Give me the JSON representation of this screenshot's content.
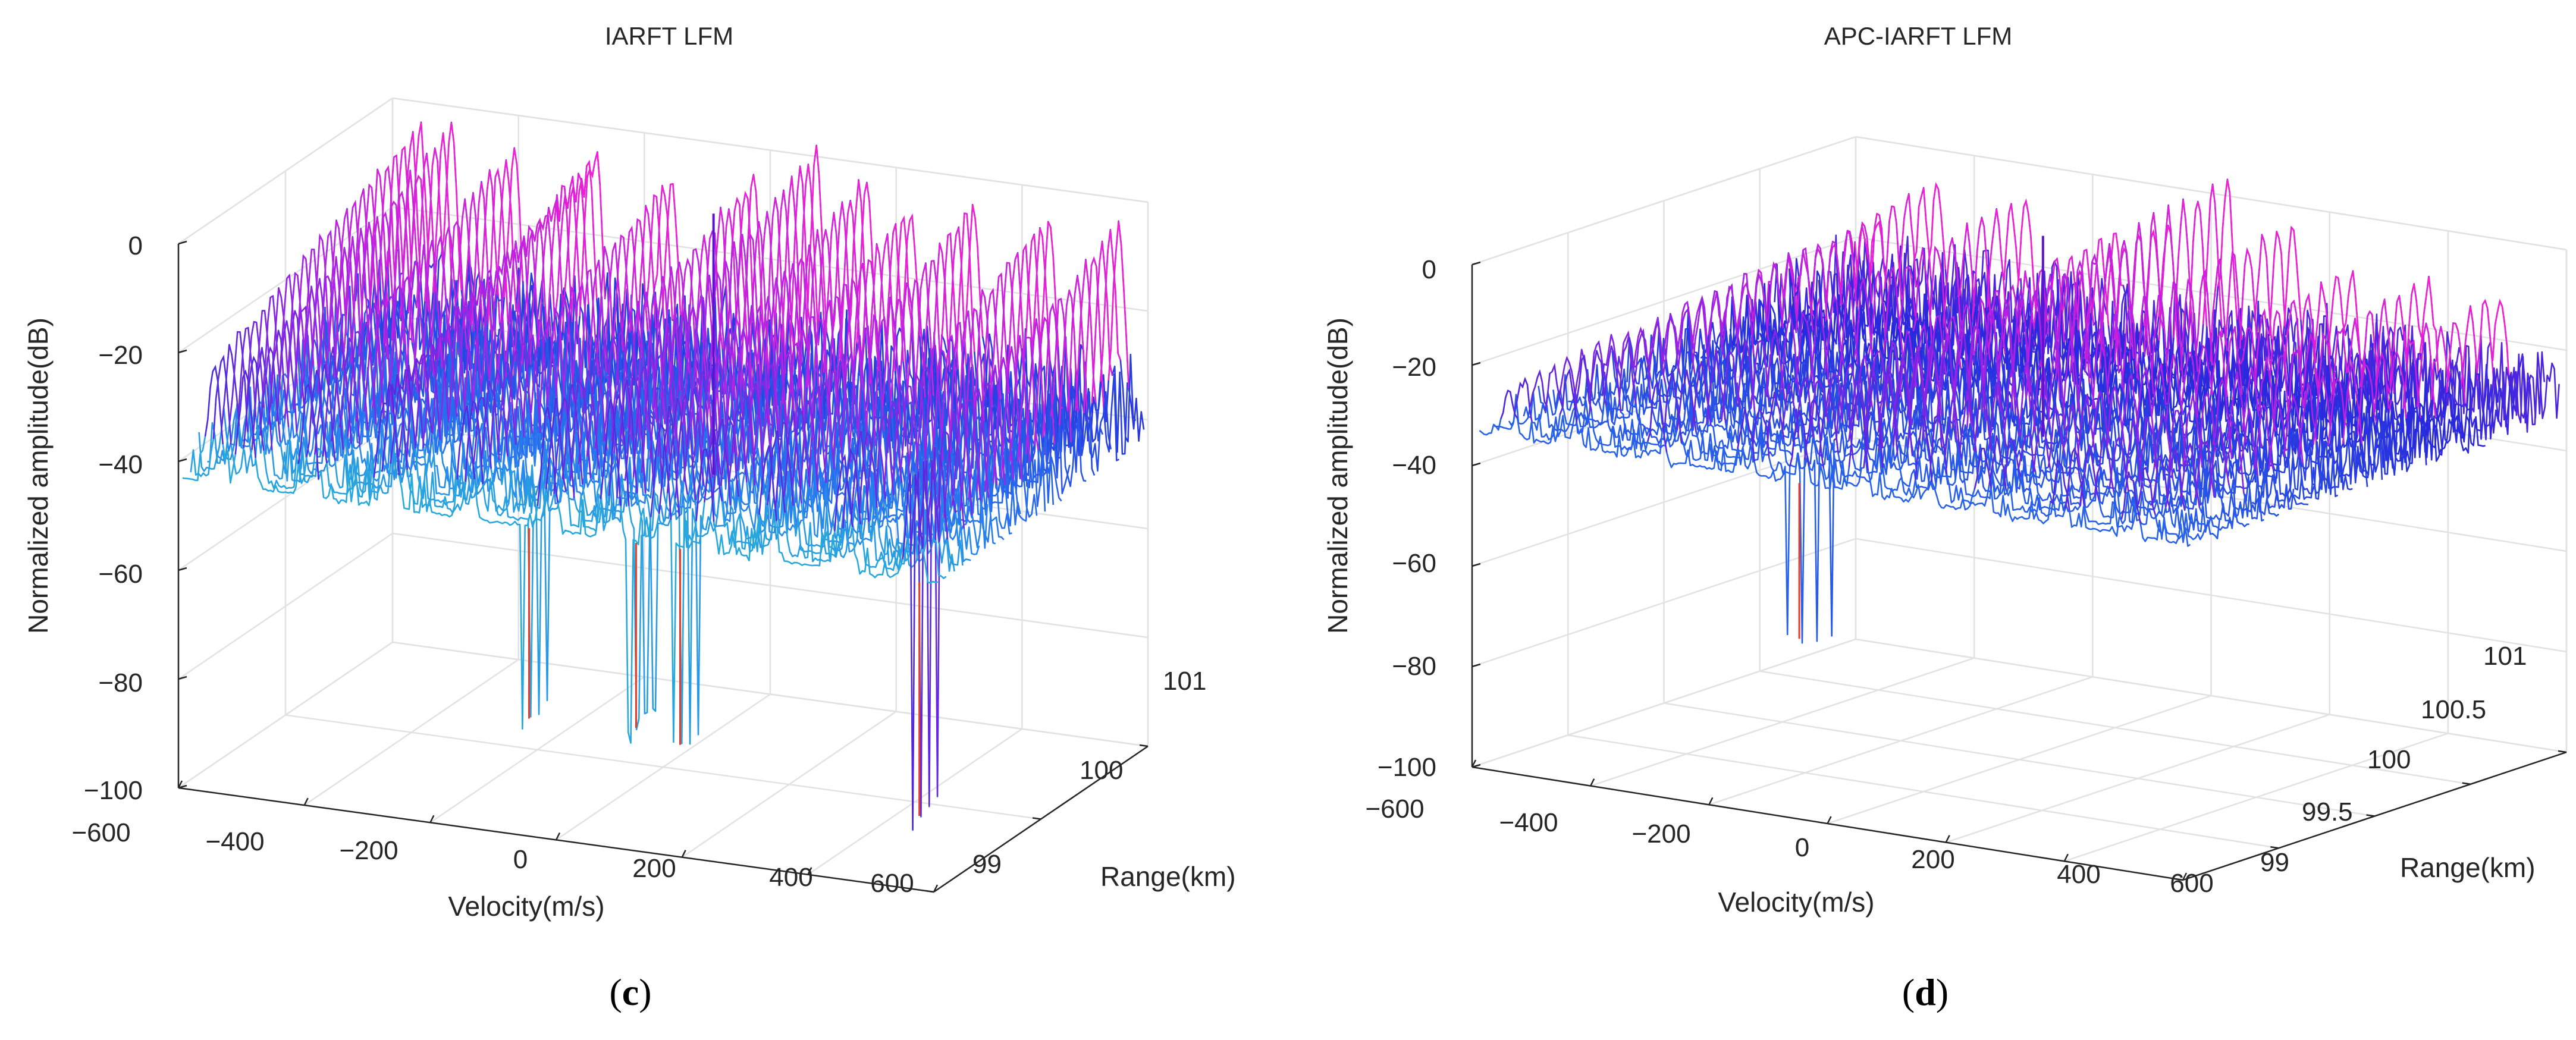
{
  "figure": {
    "panels": [
      {
        "id": "c",
        "letter": "c",
        "letter_open": "(",
        "letter_close": ")",
        "title": "IARFT LFM",
        "zlabel": "Normalized amplitude(dB)",
        "xlabel": "Velocity(m/s)",
        "ylabel": "Range(km)",
        "zticks": [
          "0",
          "−20",
          "−40",
          "−60",
          "−80",
          "−100"
        ],
        "xticks": [
          "−600",
          "−400",
          "−200",
          "0",
          "200",
          "400",
          "600"
        ],
        "yticks": [
          "99",
          "100",
          "101"
        ]
      },
      {
        "id": "d",
        "letter": "d",
        "letter_open": "(",
        "letter_close": ")",
        "title": "APC-IARFT LFM",
        "zlabel": "Normalized amplitude(dB)",
        "xlabel": "Velocity(m/s)",
        "ylabel": "Range(km)",
        "zticks": [
          "0",
          "−20",
          "−40",
          "−60",
          "−80",
          "−100"
        ],
        "xticks": [
          "−600",
          "−400",
          "−200",
          "0",
          "200",
          "400",
          "600"
        ],
        "yticks": [
          "99",
          "99.5",
          "100",
          "100.5",
          "101"
        ]
      }
    ]
  },
  "chart_data": [
    {
      "type": "surface",
      "title": "IARFT LFM",
      "xlabel": "Velocity(m/s)",
      "ylabel": "Range(km)",
      "zlabel": "Normalized amplitude(dB)",
      "xlim": [
        -600,
        600
      ],
      "ylim": [
        99,
        101
      ],
      "zlim": [
        -100,
        0
      ],
      "x_ticks": [
        -600,
        -400,
        -200,
        0,
        200,
        400,
        600
      ],
      "y_ticks": [
        99,
        100,
        101
      ],
      "z_ticks": [
        0,
        -20,
        -40,
        -60,
        -80,
        -100
      ],
      "colormap": "hsv",
      "noise_floor_db": -45,
      "noise_spread_db": 12,
      "sidelobe_peaks": [
        {
          "velocity": -550,
          "amplitude_db": -3
        },
        {
          "velocity": -500,
          "amplitude_db": -3
        },
        {
          "velocity": -400,
          "amplitude_db": -5
        },
        {
          "velocity": -280,
          "amplitude_db": -6
        },
        {
          "velocity": -270,
          "amplitude_db": -3
        },
        {
          "velocity": -150,
          "amplitude_db": -6
        },
        {
          "velocity": -20,
          "amplitude_db": -4
        },
        {
          "velocity": 80,
          "amplitude_db": 3
        },
        {
          "velocity": 160,
          "amplitude_db": -1
        },
        {
          "velocity": 230,
          "amplitude_db": -6
        },
        {
          "velocity": 330,
          "amplitude_db": -4
        },
        {
          "velocity": 450,
          "amplitude_db": -4
        },
        {
          "velocity": 560,
          "amplitude_db": -4
        }
      ],
      "deep_nulls": [
        {
          "velocity": -60,
          "amplitude_db": -80
        },
        {
          "velocity": 110,
          "amplitude_db": -79
        },
        {
          "velocity": 180,
          "amplitude_db": -81
        },
        {
          "velocity": 560,
          "amplitude_db": -88
        }
      ]
    },
    {
      "type": "surface",
      "title": "APC-IARFT LFM",
      "xlabel": "Velocity(m/s)",
      "ylabel": "Range(km)",
      "zlabel": "Normalized amplitude(dB)",
      "xlim": [
        -600,
        600
      ],
      "ylim": [
        99,
        101
      ],
      "zlim": [
        -100,
        0
      ],
      "x_ticks": [
        -600,
        -400,
        -200,
        0,
        200,
        400,
        600
      ],
      "y_ticks": [
        99,
        99.5,
        100,
        100.5,
        101
      ],
      "z_ticks": [
        0,
        -20,
        -40,
        -60,
        -80,
        -100
      ],
      "colormap": "hsv",
      "noise_floor_db": -35,
      "noise_spread_db": 10,
      "sidelobe_peaks": [
        {
          "velocity": -550,
          "amplitude_db": -15
        },
        {
          "velocity": -450,
          "amplitude_db": -5
        },
        {
          "velocity": -300,
          "amplitude_db": -6
        },
        {
          "velocity": -150,
          "amplitude_db": -10
        },
        {
          "velocity": -60,
          "amplitude_db": -6
        },
        {
          "velocity": 40,
          "amplitude_db": 5
        },
        {
          "velocity": 150,
          "amplitude_db": -2
        },
        {
          "velocity": 250,
          "amplitude_db": -10
        },
        {
          "velocity": 380,
          "amplitude_db": -10
        },
        {
          "velocity": 500,
          "amplitude_db": -10
        }
      ],
      "deep_nulls": [
        {
          "velocity": -80,
          "amplitude_db": -66
        }
      ]
    }
  ]
}
